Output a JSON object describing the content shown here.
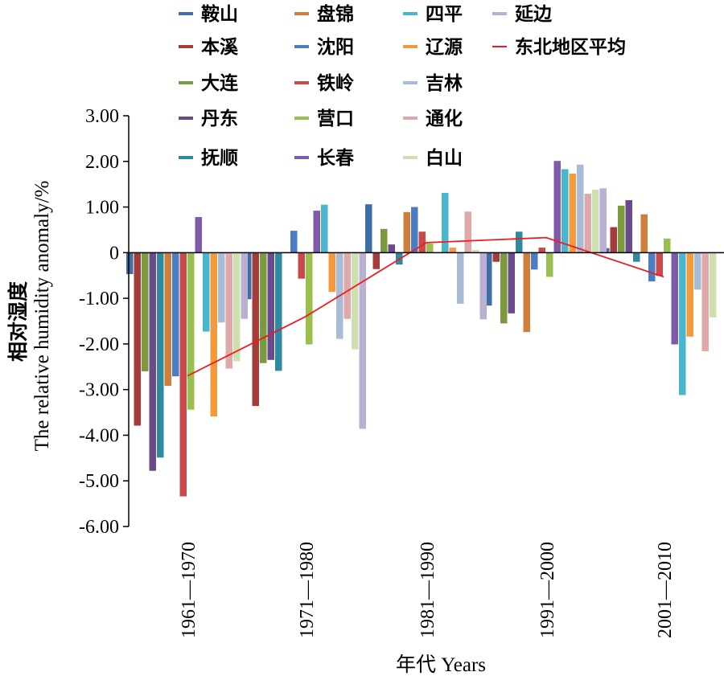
{
  "chart_data": {
    "type": "bar",
    "title": "",
    "ylabel_line1": "相对湿度",
    "ylabel_line2": "The relative humidity anomaly/%",
    "xlabel": "年代 Years",
    "ylim": [
      -6.0,
      3.0
    ],
    "yticks": [
      "3.00",
      "2.00",
      "1.00",
      "0",
      "-1.00",
      "-2.00",
      "-3.00",
      "-4.00",
      "-5.00",
      "-6.00"
    ],
    "ytick_values": [
      3,
      2,
      1,
      0,
      -1,
      -2,
      -3,
      -4,
      -5,
      -6
    ],
    "categories": [
      "1961—1970",
      "1971—1980",
      "1981—1990",
      "1991—2000",
      "2001—2010"
    ],
    "series": [
      {
        "name": "鞍山",
        "color": "#3f6ea6",
        "values": [
          -0.47,
          -1.02,
          1.06,
          -1.16,
          0.1
        ]
      },
      {
        "name": "本溪",
        "color": "#a53b3b",
        "values": [
          -3.79,
          -3.36,
          -0.36,
          -0.2,
          0.56
        ]
      },
      {
        "name": "大连",
        "color": "#7b9a3e",
        "values": [
          -2.6,
          -2.42,
          0.52,
          -1.55,
          1.03
        ]
      },
      {
        "name": "丹东",
        "color": "#6a4a8a",
        "values": [
          -4.78,
          -2.35,
          0.18,
          -1.33,
          1.15
        ]
      },
      {
        "name": "抚顺",
        "color": "#2e8aa0",
        "values": [
          -4.49,
          -2.59,
          -0.26,
          0.46,
          -0.2
        ]
      },
      {
        "name": "盘锦",
        "color": "#d07f3a",
        "values": [
          -2.92,
          0.0,
          0.89,
          -1.74,
          0.84
        ]
      },
      {
        "name": "沈阳",
        "color": "#4a7dc4",
        "values": [
          -2.71,
          0.48,
          1.0,
          -0.37,
          -0.63
        ]
      },
      {
        "name": "铁岭",
        "color": "#c94a4a",
        "values": [
          -5.34,
          -0.57,
          0.46,
          0.11,
          -0.51
        ]
      },
      {
        "name": "营口",
        "color": "#9bbf4e",
        "values": [
          -3.44,
          -2.01,
          0.2,
          -0.53,
          0.31
        ]
      },
      {
        "name": "长春",
        "color": "#7e5aa8",
        "values": [
          0.78,
          0.92,
          0.0,
          2.01,
          -2.01
        ]
      },
      {
        "name": "四平",
        "color": "#4ab6cc",
        "values": [
          -1.73,
          1.05,
          1.31,
          1.83,
          -3.12
        ]
      },
      {
        "name": "辽源",
        "color": "#f59a3c",
        "values": [
          -3.59,
          -0.86,
          0.11,
          1.73,
          -1.84
        ]
      },
      {
        "name": "吉林",
        "color": "#a8bcd8",
        "values": [
          -1.53,
          -1.89,
          -1.12,
          1.93,
          -0.81
        ]
      },
      {
        "name": "通化",
        "color": "#e0a9a9",
        "values": [
          -2.54,
          -1.45,
          0.9,
          1.29,
          -2.16
        ]
      },
      {
        "name": "白山",
        "color": "#cfe0b0",
        "values": [
          -2.38,
          -2.12,
          0.06,
          1.38,
          -1.42
        ]
      },
      {
        "name": "延边",
        "color": "#bab0d2",
        "values": [
          -1.45,
          -3.86,
          -1.46,
          1.41,
          0.0
        ]
      }
    ],
    "line_series": {
      "name": "东北地区平均",
      "color": "#ee1c1c",
      "values": [
        -2.7,
        -1.4,
        0.22,
        0.33,
        -0.53
      ]
    },
    "legend_order": [
      [
        "鞍山",
        "盘锦",
        "四平",
        "延边"
      ],
      [
        "本溪",
        "沈阳",
        "辽源",
        "东北地区平均"
      ],
      [
        "大连",
        "铁岭",
        "吉林"
      ],
      [
        "丹东",
        "营口",
        "通化"
      ],
      [
        "抚顺",
        "长春",
        "白山"
      ]
    ],
    "legend_position": "top",
    "grid": false
  }
}
